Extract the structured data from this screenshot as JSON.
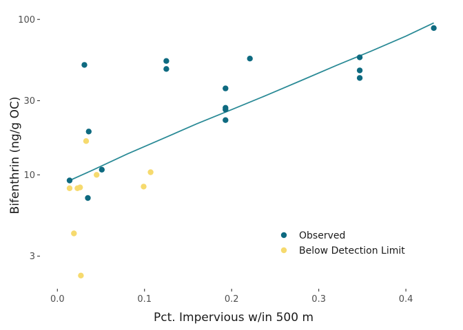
{
  "chart_data": {
    "type": "scatter",
    "xlabel": "Pct. Impervious w/in 500 m",
    "ylabel": "Bifenthrin (ng/g OC)",
    "xlim": [
      -0.02,
      0.445
    ],
    "ylim": [
      1.85,
      118
    ],
    "y_scale": "log",
    "x_ticks": [
      0.0,
      0.1,
      0.2,
      0.3,
      0.4
    ],
    "x_tick_labels": [
      "0.0",
      "0.1",
      "0.2",
      "0.3",
      "0.4"
    ],
    "y_ticks": [
      3,
      10,
      30,
      100
    ],
    "y_tick_labels": [
      "3",
      "10",
      "30",
      "100"
    ],
    "grid": false,
    "legend_position": "bottom-right",
    "colors": {
      "Observed": "#0e6a80",
      "Below Detection Limit": "#f6da6e",
      "trend": "#2a8a96"
    },
    "series": [
      {
        "name": "Observed",
        "points": [
          {
            "x": 0.014,
            "y": 9.2
          },
          {
            "x": 0.031,
            "y": 51
          },
          {
            "x": 0.035,
            "y": 7.1
          },
          {
            "x": 0.036,
            "y": 19
          },
          {
            "x": 0.051,
            "y": 10.8
          },
          {
            "x": 0.125,
            "y": 54
          },
          {
            "x": 0.125,
            "y": 48
          },
          {
            "x": 0.193,
            "y": 36
          },
          {
            "x": 0.193,
            "y": 27
          },
          {
            "x": 0.193,
            "y": 26.3
          },
          {
            "x": 0.193,
            "y": 22.5
          },
          {
            "x": 0.221,
            "y": 56
          },
          {
            "x": 0.347,
            "y": 57
          },
          {
            "x": 0.347,
            "y": 47
          },
          {
            "x": 0.347,
            "y": 42
          },
          {
            "x": 0.432,
            "y": 88
          }
        ]
      },
      {
        "name": "Below Detection Limit",
        "points": [
          {
            "x": 0.014,
            "y": 8.2
          },
          {
            "x": 0.019,
            "y": 4.2
          },
          {
            "x": 0.023,
            "y": 8.2
          },
          {
            "x": 0.026,
            "y": 8.3
          },
          {
            "x": 0.027,
            "y": 2.25
          },
          {
            "x": 0.033,
            "y": 16.5
          },
          {
            "x": 0.045,
            "y": 10
          },
          {
            "x": 0.099,
            "y": 8.4
          },
          {
            "x": 0.107,
            "y": 10.4
          }
        ]
      }
    ],
    "trend_line": [
      {
        "x": 0.014,
        "y": 9.2
      },
      {
        "x": 0.04,
        "y": 10.7
      },
      {
        "x": 0.08,
        "y": 13.6
      },
      {
        "x": 0.12,
        "y": 17.0
      },
      {
        "x": 0.16,
        "y": 21.3
      },
      {
        "x": 0.2,
        "y": 26.3
      },
      {
        "x": 0.24,
        "y": 32.5
      },
      {
        "x": 0.28,
        "y": 40.5
      },
      {
        "x": 0.32,
        "y": 50.5
      },
      {
        "x": 0.36,
        "y": 62.5
      },
      {
        "x": 0.4,
        "y": 78
      },
      {
        "x": 0.432,
        "y": 95
      }
    ]
  }
}
